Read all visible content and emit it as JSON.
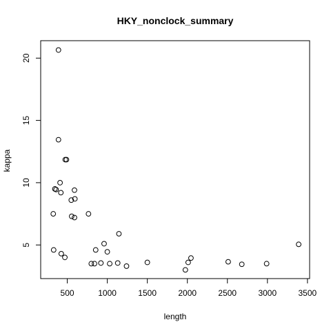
{
  "chart_data": {
    "type": "scatter",
    "title": "HKY_nonclock_summary",
    "xlabel": "length",
    "ylabel": "kappa",
    "xlim": [
      168,
      3527
    ],
    "ylim": [
      2.3,
      21.4
    ],
    "xticks": [
      500,
      1000,
      1500,
      2000,
      2500,
      3000,
      3500
    ],
    "xtick_labels": [
      "500",
      "1000",
      "1500",
      "2000",
      "2500",
      "3000",
      "3500"
    ],
    "yticks": [
      5,
      10,
      15,
      20
    ],
    "ytick_labels": [
      "5",
      "10",
      "15",
      "20"
    ],
    "grid": false,
    "legend": "none",
    "points": [
      {
        "x": 390,
        "y": 20.65
      },
      {
        "x": 390,
        "y": 13.45
      },
      {
        "x": 475,
        "y": 11.85
      },
      {
        "x": 490,
        "y": 11.85
      },
      {
        "x": 345,
        "y": 9.5
      },
      {
        "x": 360,
        "y": 9.45
      },
      {
        "x": 410,
        "y": 10.0
      },
      {
        "x": 420,
        "y": 9.2
      },
      {
        "x": 590,
        "y": 9.4
      },
      {
        "x": 550,
        "y": 8.6
      },
      {
        "x": 595,
        "y": 8.7
      },
      {
        "x": 325,
        "y": 7.5
      },
      {
        "x": 555,
        "y": 7.3
      },
      {
        "x": 590,
        "y": 7.2
      },
      {
        "x": 765,
        "y": 7.5
      },
      {
        "x": 330,
        "y": 4.6
      },
      {
        "x": 425,
        "y": 4.3
      },
      {
        "x": 470,
        "y": 4.0
      },
      {
        "x": 800,
        "y": 3.5
      },
      {
        "x": 840,
        "y": 3.5
      },
      {
        "x": 855,
        "y": 4.6
      },
      {
        "x": 920,
        "y": 3.55
      },
      {
        "x": 960,
        "y": 5.1
      },
      {
        "x": 1000,
        "y": 4.45
      },
      {
        "x": 1030,
        "y": 3.5
      },
      {
        "x": 1130,
        "y": 3.55
      },
      {
        "x": 1145,
        "y": 5.9
      },
      {
        "x": 1240,
        "y": 3.3
      },
      {
        "x": 1500,
        "y": 3.6
      },
      {
        "x": 1975,
        "y": 3.0
      },
      {
        "x": 2010,
        "y": 3.6
      },
      {
        "x": 2045,
        "y": 3.95
      },
      {
        "x": 2510,
        "y": 3.65
      },
      {
        "x": 2680,
        "y": 3.45
      },
      {
        "x": 2990,
        "y": 3.5
      },
      {
        "x": 3390,
        "y": 5.05
      }
    ]
  }
}
